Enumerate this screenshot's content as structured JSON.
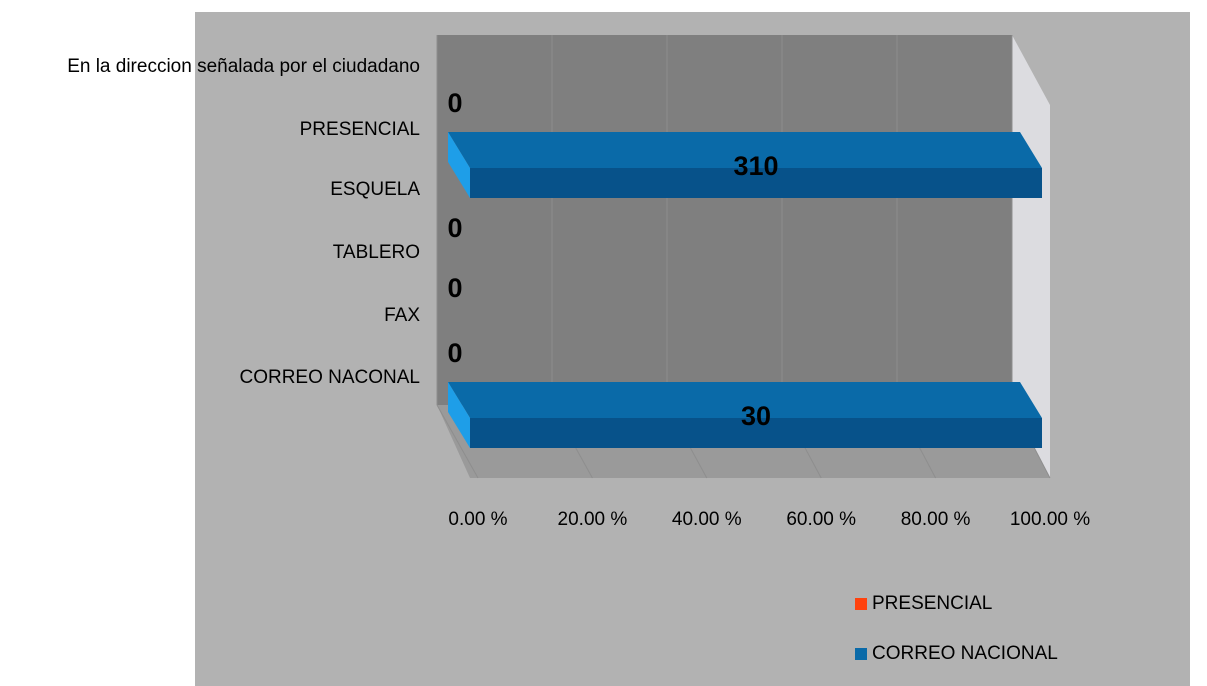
{
  "chart_data": {
    "type": "bar3d_percent",
    "y_labels": [
      "En la direccion señalada por el ciudadano",
      "PRESENCIAL",
      "ESQUELA",
      "TABLERO",
      "FAX",
      "CORREO NACONAL"
    ],
    "series": [
      {
        "name": "PRESENCIAL",
        "color": "#ff420e",
        "values": [
          0,
          0
        ]
      },
      {
        "name": "CORREO NACIONAL",
        "color": "#0a6aa8",
        "values": [
          310,
          30
        ]
      },
      {
        "values": [
          null,
          0
        ]
      },
      {
        "values": [
          null,
          0
        ]
      }
    ],
    "xlim": [
      0,
      100
    ],
    "xticks": [
      {
        "value": 0,
        "label": "0.00 %"
      },
      {
        "value": 20,
        "label": "20.00 %"
      },
      {
        "value": 40,
        "label": "40.00 %"
      },
      {
        "value": 60,
        "label": "60.00 %"
      },
      {
        "value": 80,
        "label": "80.00 %"
      },
      {
        "value": 100,
        "label": "100.00 %"
      }
    ],
    "grid": true,
    "legend": "bottom-right"
  }
}
